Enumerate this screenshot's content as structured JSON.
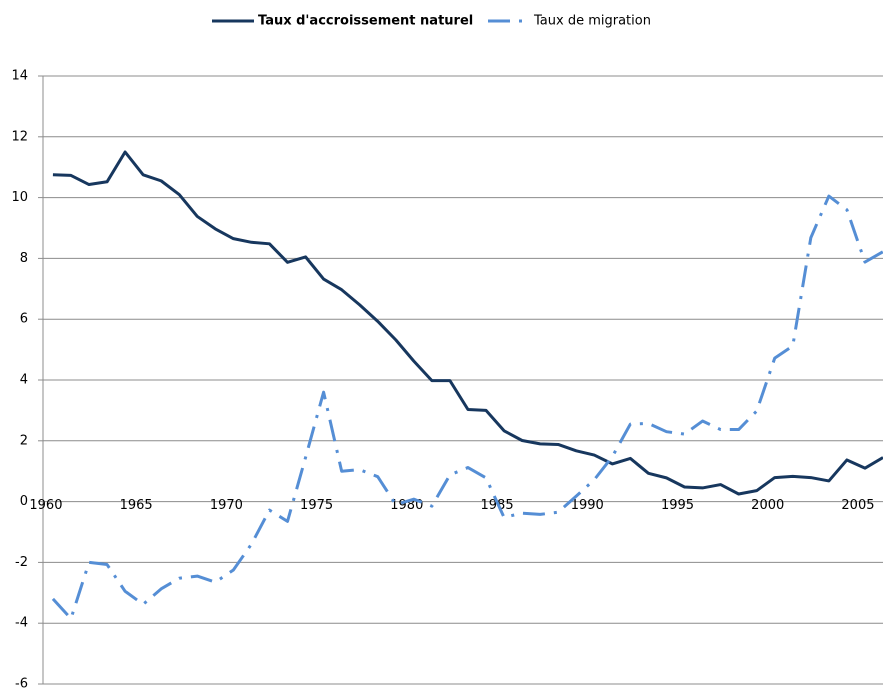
{
  "chart_data": {
    "type": "line",
    "x": [
      1960,
      1961,
      1962,
      1963,
      1964,
      1965,
      1966,
      1967,
      1968,
      1969,
      1970,
      1971,
      1972,
      1973,
      1974,
      1975,
      1976,
      1977,
      1978,
      1979,
      1980,
      1981,
      1982,
      1983,
      1984,
      1985,
      1986,
      1987,
      1988,
      1989,
      1990,
      1991,
      1992,
      1993,
      1994,
      1995,
      1996,
      1997,
      1998,
      1999,
      2000,
      2001,
      2002,
      2003,
      2004,
      2005,
      2006
    ],
    "series": [
      {
        "name": "Taux d'accroissement naturel",
        "color": "#17375e",
        "dash": "solid",
        "values": [
          10.75,
          10.73,
          10.43,
          10.52,
          11.5,
          10.75,
          10.55,
          10.1,
          9.38,
          8.97,
          8.65,
          8.53,
          8.48,
          7.87,
          8.05,
          7.32,
          6.97,
          6.47,
          5.93,
          5.32,
          4.62,
          3.98,
          3.98,
          3.03,
          3.0,
          2.33,
          2.01,
          1.9,
          1.88,
          1.67,
          1.53,
          1.24,
          1.42,
          0.93,
          0.78,
          0.48,
          0.45,
          0.56,
          0.25,
          0.36,
          0.79,
          0.83,
          0.79,
          0.68,
          1.37,
          1.1,
          1.45
        ]
      },
      {
        "name": "Taux de migration",
        "color": "#558ed5",
        "dash": "dashdot",
        "values": [
          -3.2,
          -3.85,
          -2.0,
          -2.07,
          -2.95,
          -3.38,
          -2.87,
          -2.52,
          -2.45,
          -2.65,
          -2.25,
          -1.4,
          -0.28,
          -0.65,
          1.45,
          3.6,
          1.0,
          1.05,
          0.82,
          -0.1,
          0.08,
          -0.15,
          0.88,
          1.12,
          0.78,
          -0.52,
          -0.38,
          -0.42,
          -0.35,
          0.18,
          0.72,
          1.48,
          2.55,
          2.57,
          2.3,
          2.22,
          2.65,
          2.37,
          2.37,
          2.98,
          4.72,
          5.12,
          8.68,
          10.05,
          9.6,
          7.88,
          8.22
        ]
      }
    ],
    "xlim": [
      1959.45,
      2006
    ],
    "xticks": [
      1960,
      1965,
      1970,
      1975,
      1980,
      1985,
      1990,
      1995,
      2000,
      2005
    ],
    "ylim": [
      -6,
      14
    ],
    "yticks": [
      -6,
      -4,
      -2,
      0,
      2,
      4,
      6,
      8,
      10,
      12,
      14
    ],
    "grid": true,
    "legend": "top"
  }
}
